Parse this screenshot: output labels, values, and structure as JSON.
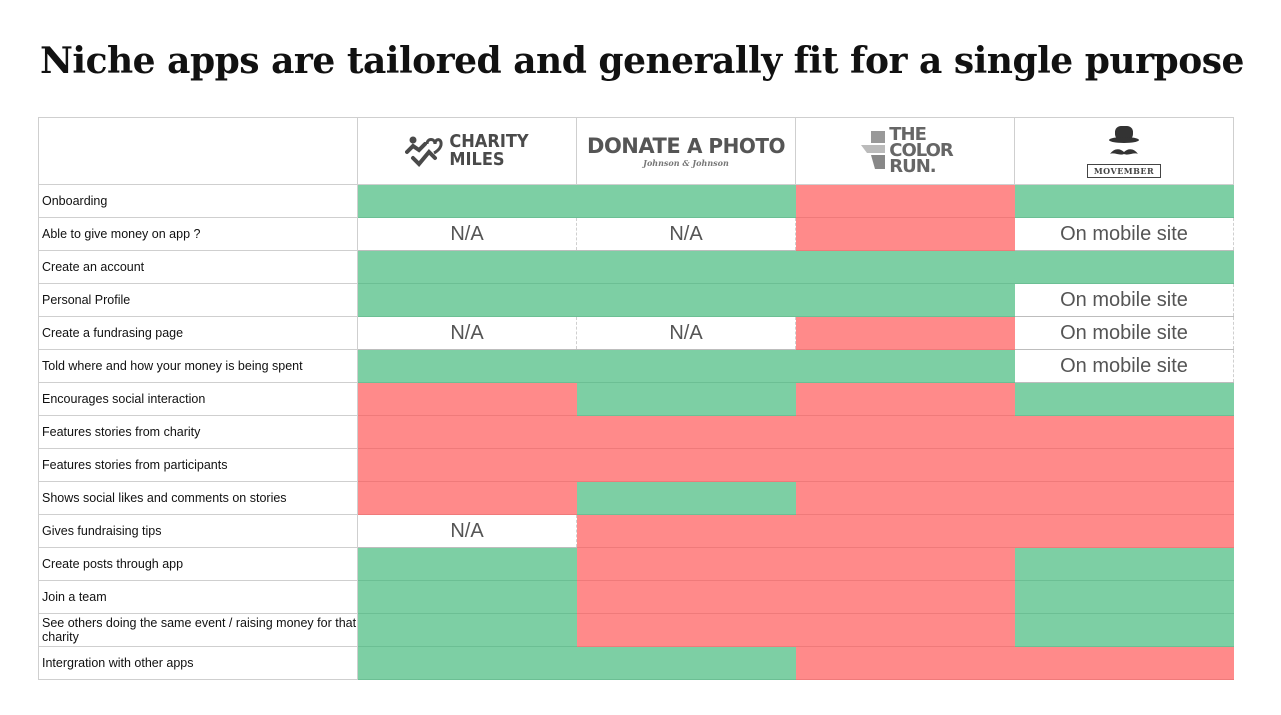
{
  "title": "Niche apps are tailored and generally fit for a single purpose",
  "columns": [
    {
      "logo": "charity-miles-logo",
      "line1": "CHARITY",
      "line2": "MILES"
    },
    {
      "logo": "donate-a-photo-logo",
      "word1": "DONATE",
      "word2": "A PHOTO",
      "sub": "Johnson & Johnson"
    },
    {
      "logo": "the-color-run-logo",
      "line1": "THE",
      "line2": "COLOR",
      "line3": "RUN."
    },
    {
      "logo": "movember-logo",
      "name": "MOVEMBER"
    }
  ],
  "colors": {
    "yes": "#7dcfa4",
    "no": "#ff8a8a",
    "none": "#ffffff"
  },
  "rows": [
    {
      "label": "Onboarding",
      "cells": [
        {
          "s": "g",
          "t": ""
        },
        {
          "s": "g",
          "t": ""
        },
        {
          "s": "r",
          "t": ""
        },
        {
          "s": "g",
          "t": ""
        }
      ]
    },
    {
      "label": "Able to give money on app ?",
      "cells": [
        {
          "s": "w",
          "t": "N/A"
        },
        {
          "s": "w",
          "t": "N/A"
        },
        {
          "s": "r",
          "t": ""
        },
        {
          "s": "w",
          "t": "On mobile site"
        }
      ]
    },
    {
      "label": "Create an account",
      "cells": [
        {
          "s": "g",
          "t": ""
        },
        {
          "s": "g",
          "t": ""
        },
        {
          "s": "g",
          "t": ""
        },
        {
          "s": "g",
          "t": ""
        }
      ]
    },
    {
      "label": "Personal Profile",
      "cells": [
        {
          "s": "g",
          "t": ""
        },
        {
          "s": "g",
          "t": ""
        },
        {
          "s": "g",
          "t": ""
        },
        {
          "s": "w",
          "t": "On mobile site"
        }
      ]
    },
    {
      "label": "Create a fundrasing page",
      "cells": [
        {
          "s": "w",
          "t": "N/A"
        },
        {
          "s": "w",
          "t": "N/A"
        },
        {
          "s": "r",
          "t": ""
        },
        {
          "s": "w",
          "t": "On mobile site"
        }
      ]
    },
    {
      "label": "Told where and how your money is being spent",
      "cells": [
        {
          "s": "g",
          "t": ""
        },
        {
          "s": "g",
          "t": ""
        },
        {
          "s": "g",
          "t": ""
        },
        {
          "s": "w",
          "t": "On mobile site"
        }
      ]
    },
    {
      "label": "Encourages social interaction",
      "cells": [
        {
          "s": "r",
          "t": ""
        },
        {
          "s": "g",
          "t": ""
        },
        {
          "s": "r",
          "t": ""
        },
        {
          "s": "g",
          "t": ""
        }
      ]
    },
    {
      "label": "Features stories from charity",
      "cells": [
        {
          "s": "r",
          "t": ""
        },
        {
          "s": "r",
          "t": ""
        },
        {
          "s": "r",
          "t": ""
        },
        {
          "s": "r",
          "t": ""
        }
      ]
    },
    {
      "label": "Features stories from participants",
      "cells": [
        {
          "s": "r",
          "t": ""
        },
        {
          "s": "r",
          "t": ""
        },
        {
          "s": "r",
          "t": ""
        },
        {
          "s": "r",
          "t": ""
        }
      ]
    },
    {
      "label": "Shows social likes and comments on stories",
      "cells": [
        {
          "s": "r",
          "t": ""
        },
        {
          "s": "g",
          "t": ""
        },
        {
          "s": "r",
          "t": ""
        },
        {
          "s": "r",
          "t": ""
        }
      ]
    },
    {
      "label": "Gives fundraising tips",
      "cells": [
        {
          "s": "w",
          "t": "N/A"
        },
        {
          "s": "r",
          "t": ""
        },
        {
          "s": "r",
          "t": ""
        },
        {
          "s": "r",
          "t": ""
        }
      ]
    },
    {
      "label": "Create posts through app",
      "cells": [
        {
          "s": "g",
          "t": ""
        },
        {
          "s": "r",
          "t": ""
        },
        {
          "s": "r",
          "t": ""
        },
        {
          "s": "g",
          "t": ""
        }
      ]
    },
    {
      "label": "Join a team",
      "cells": [
        {
          "s": "g",
          "t": ""
        },
        {
          "s": "r",
          "t": ""
        },
        {
          "s": "r",
          "t": ""
        },
        {
          "s": "g",
          "t": ""
        }
      ]
    },
    {
      "label": "See others doing the same event / raising money for that charity",
      "cells": [
        {
          "s": "g",
          "t": ""
        },
        {
          "s": "r",
          "t": ""
        },
        {
          "s": "r",
          "t": ""
        },
        {
          "s": "g",
          "t": ""
        }
      ]
    },
    {
      "label": "Intergration with other apps",
      "cells": [
        {
          "s": "g",
          "t": ""
        },
        {
          "s": "g",
          "t": ""
        },
        {
          "s": "r",
          "t": ""
        },
        {
          "s": "r",
          "t": ""
        }
      ]
    }
  ]
}
